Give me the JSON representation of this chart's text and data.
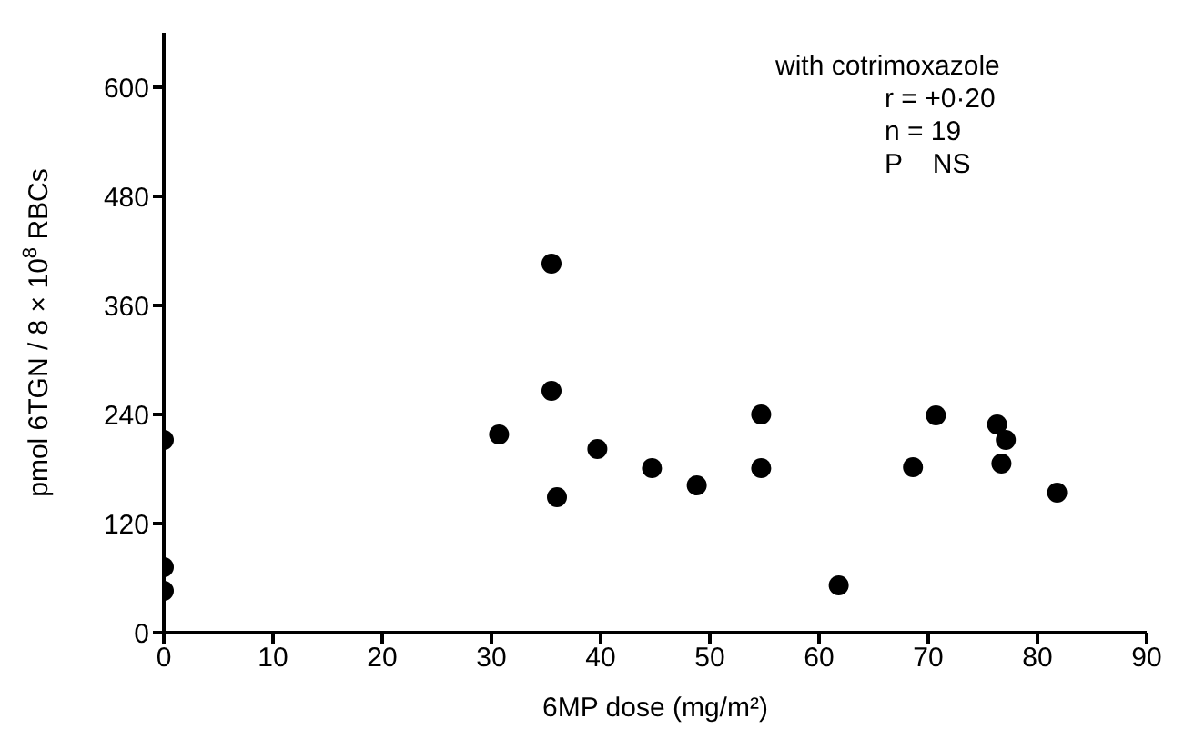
{
  "chart_data": {
    "type": "scatter",
    "xlabel": "6MP dose (mg/m²)",
    "ylabel": "pmol 6TGN / 8 × 10$^{8}$ RBCs",
    "annotations": [
      "with cotrimoxazole",
      "r = +0·20",
      "n = 19",
      "P    NS"
    ],
    "x": [
      0,
      0,
      0,
      30.7,
      35.5,
      35.5,
      36,
      39.7,
      44.7,
      48.8,
      54.7,
      54.7,
      61.8,
      68.6,
      70.7,
      76.3,
      77.1,
      76.7,
      81.8
    ],
    "series": [
      {
        "color": "#000000",
        "values": [
          212,
          72,
          46,
          218,
          406,
          266,
          149,
          202,
          181,
          162,
          240,
          181,
          52,
          182,
          239,
          229,
          212,
          186,
          154
        ]
      }
    ],
    "xlim": [
      0,
      90
    ],
    "xticks": [
      0,
      10,
      20,
      30,
      40,
      50,
      60,
      70,
      80,
      90
    ],
    "ylim": [
      0,
      660
    ],
    "yticks": [
      0,
      120,
      240,
      360,
      480,
      600
    ],
    "grid": false,
    "legend": false,
    "marker": "circle"
  }
}
